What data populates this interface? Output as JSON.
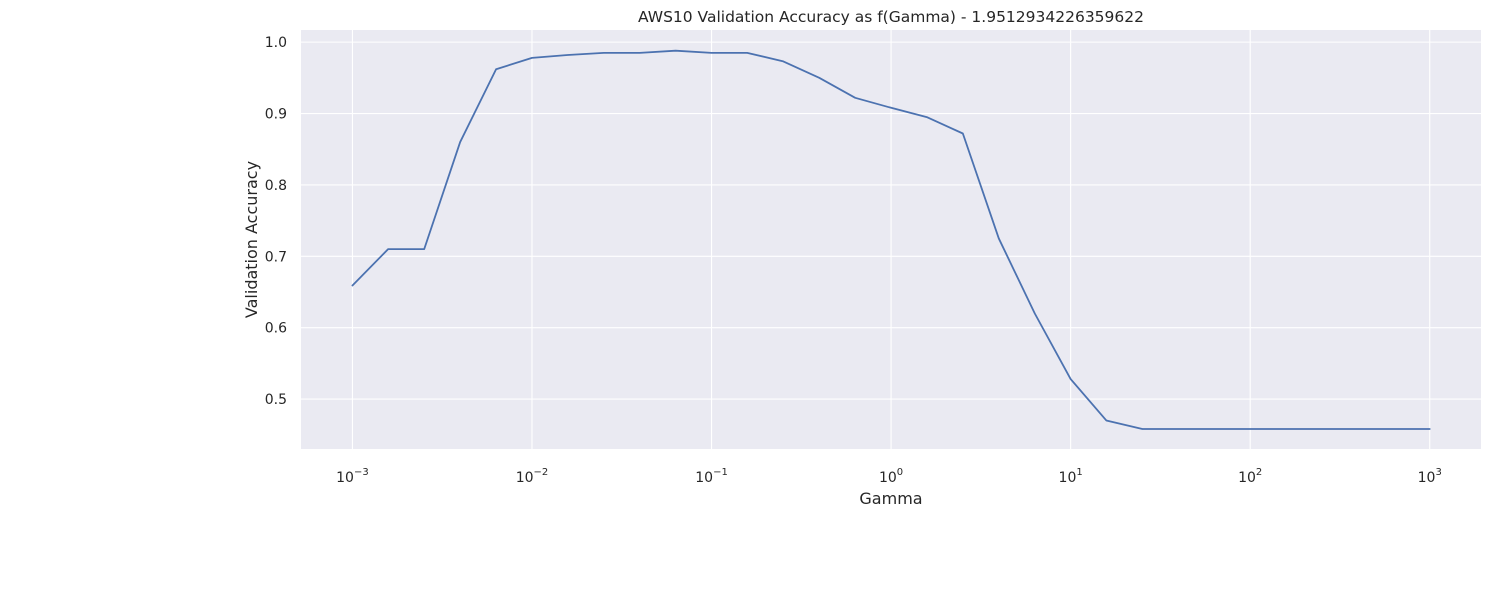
{
  "chart_data": {
    "type": "line",
    "title": "AWS10 Validation Accuracy as f(Gamma) - 1.9512934226359622",
    "xlabel": "Gamma",
    "ylabel": "Validation Accuracy",
    "x_scale": "log",
    "xlim": [
      0.000517,
      1930
    ],
    "ylim": [
      0.43,
      1.017
    ],
    "grid": true,
    "background": "#eaeaf2",
    "grid_color": "#ffffff",
    "line_color": "#4c72b0",
    "x_ticks": [
      {
        "base": "10",
        "exp": "−3",
        "value": 0.001
      },
      {
        "base": "10",
        "exp": "−2",
        "value": 0.01
      },
      {
        "base": "10",
        "exp": "−1",
        "value": 0.1
      },
      {
        "base": "10",
        "exp": "0",
        "value": 1
      },
      {
        "base": "10",
        "exp": "1",
        "value": 10
      },
      {
        "base": "10",
        "exp": "2",
        "value": 100
      },
      {
        "base": "10",
        "exp": "3",
        "value": 1000
      }
    ],
    "y_ticks": [
      {
        "label": "0.5",
        "value": 0.5
      },
      {
        "label": "0.6",
        "value": 0.6
      },
      {
        "label": "0.7",
        "value": 0.7
      },
      {
        "label": "0.8",
        "value": 0.8
      },
      {
        "label": "0.9",
        "value": 0.9
      },
      {
        "label": "1.0",
        "value": 1.0
      }
    ],
    "series": [
      {
        "x": [
          0.001,
          0.00158,
          0.00251,
          0.00398,
          0.00631,
          0.01,
          0.0158,
          0.0251,
          0.0398,
          0.0631,
          0.1,
          0.158,
          0.251,
          0.398,
          0.631,
          1.0,
          1.58,
          2.51,
          3.98,
          6.31,
          10.0,
          15.8,
          25.1,
          39.8,
          63.1,
          100,
          158,
          251,
          398,
          631,
          1000
        ],
        "y": [
          0.659,
          0.71,
          0.71,
          0.86,
          0.962,
          0.978,
          0.982,
          0.985,
          0.985,
          0.988,
          0.985,
          0.985,
          0.973,
          0.95,
          0.922,
          0.908,
          0.895,
          0.872,
          0.725,
          0.62,
          0.528,
          0.47,
          0.458,
          0.458,
          0.458,
          0.458,
          0.458,
          0.458,
          0.458,
          0.458,
          0.458
        ]
      }
    ]
  }
}
